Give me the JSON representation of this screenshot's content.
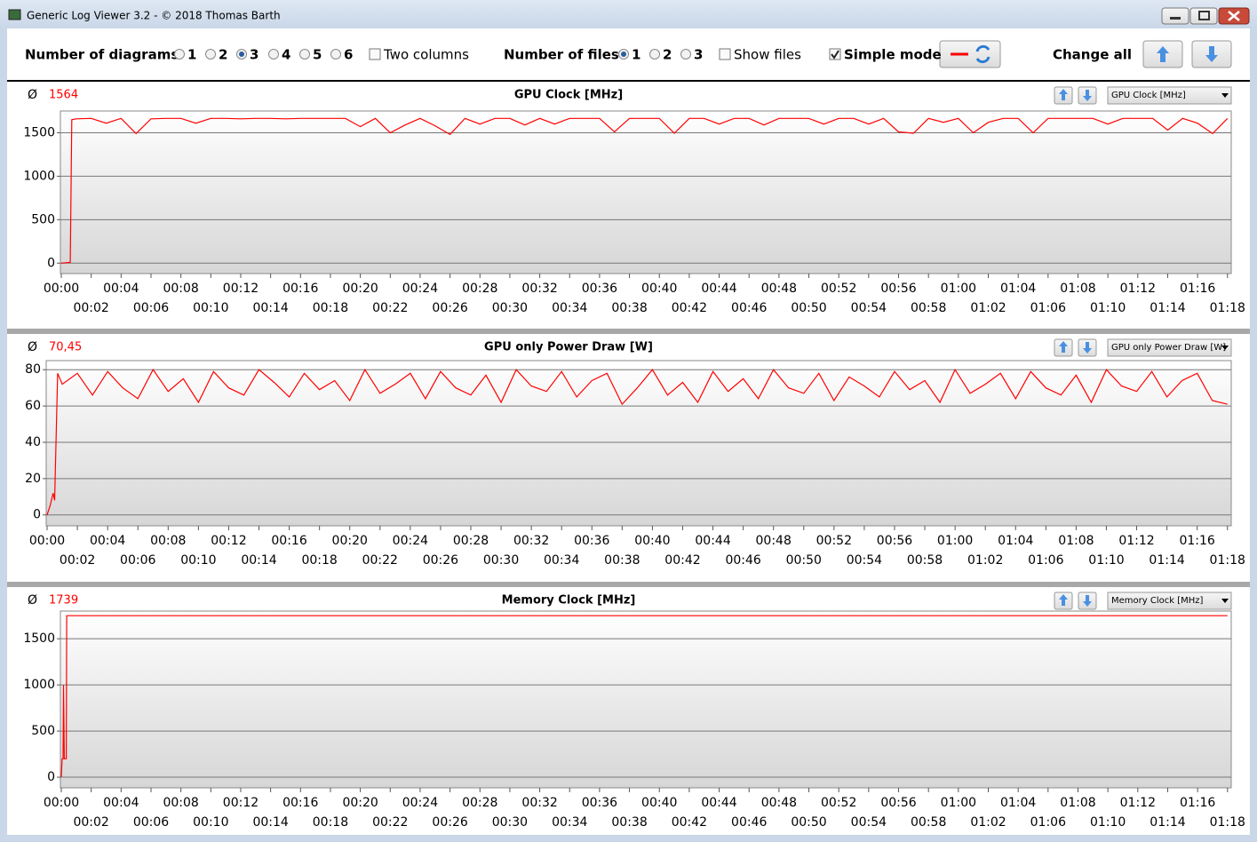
{
  "window": {
    "title": "Generic Log Viewer 3.2 - © 2018 Thomas Barth"
  },
  "toolbar": {
    "diagrams_label": "Number of diagrams",
    "diagrams_options": [
      {
        "label": "1",
        "checked": false
      },
      {
        "label": "2",
        "checked": false
      },
      {
        "label": "3",
        "checked": true
      },
      {
        "label": "4",
        "checked": false
      },
      {
        "label": "5",
        "checked": false
      },
      {
        "label": "6",
        "checked": false
      }
    ],
    "two_columns": {
      "label": "Two columns",
      "checked": false
    },
    "files_label": "Number of files",
    "files_options": [
      {
        "label": "1",
        "checked": true
      },
      {
        "label": "2",
        "checked": false
      },
      {
        "label": "3",
        "checked": false
      }
    ],
    "show_files": {
      "label": "Show files",
      "checked": false
    },
    "simple_mode": {
      "label": "Simple mode",
      "checked": true
    },
    "change_all": "Change all"
  },
  "chart_data": [
    {
      "type": "line",
      "title": "GPU Clock [MHz]",
      "avg_symbol": "Ø",
      "average": "1564",
      "color": "#ff0000",
      "x": [
        0,
        0.6,
        0.7,
        1,
        2,
        3,
        4,
        5,
        6,
        7,
        8,
        9,
        10,
        11,
        12,
        13,
        14,
        15,
        16,
        17,
        18,
        19,
        20,
        21,
        22,
        23,
        24,
        25,
        26,
        27,
        28,
        29,
        30,
        31,
        32,
        33,
        34,
        35,
        36,
        37,
        38,
        39,
        40,
        41,
        42,
        43,
        44,
        45,
        46,
        47,
        48,
        49,
        50,
        51,
        52,
        53,
        54,
        55,
        56,
        57,
        58,
        59,
        60,
        61,
        62,
        63,
        64,
        65,
        66,
        67,
        68,
        69,
        70,
        71,
        72,
        73,
        74,
        75,
        76,
        77,
        78
      ],
      "values": [
        0,
        10,
        1650,
        1660,
        1665,
        1610,
        1665,
        1490,
        1660,
        1665,
        1665,
        1610,
        1665,
        1665,
        1660,
        1665,
        1665,
        1660,
        1665,
        1665,
        1665,
        1665,
        1570,
        1665,
        1500,
        1590,
        1665,
        1580,
        1480,
        1665,
        1600,
        1665,
        1665,
        1590,
        1665,
        1600,
        1665,
        1665,
        1665,
        1510,
        1665,
        1665,
        1665,
        1495,
        1665,
        1665,
        1600,
        1665,
        1665,
        1590,
        1665,
        1665,
        1665,
        1600,
        1665,
        1665,
        1600,
        1665,
        1510,
        1495,
        1665,
        1620,
        1665,
        1500,
        1620,
        1665,
        1665,
        1500,
        1665,
        1665,
        1665,
        1665,
        1600,
        1665,
        1665,
        1665,
        1530,
        1665,
        1610,
        1490,
        1665
      ],
      "ylim": [
        -120,
        1750
      ],
      "yticks": [
        0,
        500,
        1000,
        1500
      ],
      "xlim": [
        -0.06,
        78.25
      ],
      "xticks": [
        {
          "value": 0,
          "label": "00:00"
        },
        {
          "value": 2,
          "label": "00:02"
        },
        {
          "value": 4,
          "label": "00:04"
        },
        {
          "value": 6,
          "label": "00:06"
        },
        {
          "value": 8,
          "label": "00:08"
        },
        {
          "value": 10,
          "label": "00:10"
        },
        {
          "value": 12,
          "label": "00:12"
        },
        {
          "value": 14,
          "label": "00:14"
        },
        {
          "value": 16,
          "label": "00:16"
        },
        {
          "value": 18,
          "label": "00:18"
        },
        {
          "value": 20,
          "label": "00:20"
        },
        {
          "value": 22,
          "label": "00:22"
        },
        {
          "value": 24,
          "label": "00:24"
        },
        {
          "value": 26,
          "label": "00:26"
        },
        {
          "value": 28,
          "label": "00:28"
        },
        {
          "value": 30,
          "label": "00:30"
        },
        {
          "value": 32,
          "label": "00:32"
        },
        {
          "value": 34,
          "label": "00:34"
        },
        {
          "value": 36,
          "label": "00:36"
        },
        {
          "value": 38,
          "label": "00:38"
        },
        {
          "value": 40,
          "label": "00:40"
        },
        {
          "value": 42,
          "label": "00:42"
        },
        {
          "value": 44,
          "label": "00:44"
        },
        {
          "value": 46,
          "label": "00:46"
        },
        {
          "value": 48,
          "label": "00:48"
        },
        {
          "value": 50,
          "label": "00:50"
        },
        {
          "value": 52,
          "label": "00:52"
        },
        {
          "value": 54,
          "label": "00:54"
        },
        {
          "value": 56,
          "label": "00:56"
        },
        {
          "value": 58,
          "label": "00:58"
        },
        {
          "value": 60,
          "label": "01:00"
        },
        {
          "value": 62,
          "label": "01:02"
        },
        {
          "value": 64,
          "label": "01:04"
        },
        {
          "value": 66,
          "label": "01:06"
        },
        {
          "value": 68,
          "label": "01:08"
        },
        {
          "value": 70,
          "label": "01:10"
        },
        {
          "value": 72,
          "label": "01:12"
        },
        {
          "value": 74,
          "label": "01:14"
        },
        {
          "value": 76,
          "label": "01:16"
        },
        {
          "value": 78,
          "label": "01:18"
        }
      ],
      "grid": true
    },
    {
      "type": "line",
      "title": "GPU only Power Draw [W]",
      "avg_symbol": "Ø",
      "average": "70,45",
      "color": "#ff0000",
      "x": [
        0,
        0.2,
        0.4,
        0.5,
        0.7,
        1,
        2,
        3,
        4,
        5,
        6,
        7,
        8,
        9,
        10,
        11,
        12,
        13,
        14,
        15,
        16,
        17,
        18,
        19,
        20,
        21,
        22,
        23,
        24,
        25,
        26,
        27,
        28,
        29,
        30,
        31,
        32,
        33,
        34,
        35,
        36,
        37,
        38,
        39,
        40,
        41,
        42,
        43,
        44,
        45,
        46,
        47,
        48,
        49,
        50,
        51,
        52,
        53,
        54,
        55,
        56,
        57,
        58,
        59,
        60,
        61,
        62,
        63,
        64,
        65,
        66,
        67,
        68,
        69,
        70,
        71,
        72,
        73,
        74,
        75,
        76,
        77,
        78
      ],
      "values": [
        0,
        5,
        12,
        8,
        78,
        72,
        78,
        66,
        79,
        70,
        64,
        80,
        68,
        75,
        62,
        79,
        70,
        66,
        80,
        73,
        65,
        78,
        69,
        74,
        63,
        80,
        67,
        72,
        78,
        64,
        79,
        70,
        66,
        77,
        62,
        80,
        71,
        68,
        79,
        65,
        74,
        78,
        61,
        70,
        80,
        66,
        73,
        62,
        79,
        68,
        75,
        64,
        80,
        70,
        67,
        78,
        63,
        76,
        71,
        65,
        79,
        69,
        74,
        62,
        80,
        67,
        72,
        78,
        64,
        79,
        70,
        66,
        77,
        62,
        80,
        71,
        68,
        79,
        65,
        74,
        78,
        63,
        61
      ],
      "ylim": [
        -6,
        85
      ],
      "yticks": [
        0,
        20,
        40,
        60,
        80
      ],
      "xlim": [
        -0.06,
        78.25
      ],
      "xticks": [
        {
          "value": 0,
          "label": "00:00"
        },
        {
          "value": 2,
          "label": "00:02"
        },
        {
          "value": 4,
          "label": "00:04"
        },
        {
          "value": 6,
          "label": "00:06"
        },
        {
          "value": 8,
          "label": "00:08"
        },
        {
          "value": 10,
          "label": "00:10"
        },
        {
          "value": 12,
          "label": "00:12"
        },
        {
          "value": 14,
          "label": "00:14"
        },
        {
          "value": 16,
          "label": "00:16"
        },
        {
          "value": 18,
          "label": "00:18"
        },
        {
          "value": 20,
          "label": "00:20"
        },
        {
          "value": 22,
          "label": "00:22"
        },
        {
          "value": 24,
          "label": "00:24"
        },
        {
          "value": 26,
          "label": "00:26"
        },
        {
          "value": 28,
          "label": "00:28"
        },
        {
          "value": 30,
          "label": "00:30"
        },
        {
          "value": 32,
          "label": "00:32"
        },
        {
          "value": 34,
          "label": "00:34"
        },
        {
          "value": 36,
          "label": "00:36"
        },
        {
          "value": 38,
          "label": "00:38"
        },
        {
          "value": 40,
          "label": "00:40"
        },
        {
          "value": 42,
          "label": "00:42"
        },
        {
          "value": 44,
          "label": "00:44"
        },
        {
          "value": 46,
          "label": "00:46"
        },
        {
          "value": 48,
          "label": "00:48"
        },
        {
          "value": 50,
          "label": "00:50"
        },
        {
          "value": 52,
          "label": "00:52"
        },
        {
          "value": 54,
          "label": "00:54"
        },
        {
          "value": 56,
          "label": "00:56"
        },
        {
          "value": 58,
          "label": "00:58"
        },
        {
          "value": 60,
          "label": "01:00"
        },
        {
          "value": 62,
          "label": "01:02"
        },
        {
          "value": 64,
          "label": "01:04"
        },
        {
          "value": 66,
          "label": "01:06"
        },
        {
          "value": 68,
          "label": "01:08"
        },
        {
          "value": 70,
          "label": "01:10"
        },
        {
          "value": 72,
          "label": "01:12"
        },
        {
          "value": 74,
          "label": "01:14"
        },
        {
          "value": 76,
          "label": "01:16"
        },
        {
          "value": 78,
          "label": "01:18"
        }
      ],
      "grid": true
    },
    {
      "type": "line",
      "title": "Memory Clock [MHz]",
      "avg_symbol": "Ø",
      "average": "1739",
      "color": "#ff0000",
      "x": [
        0,
        0.05,
        0.12,
        0.15,
        0.2,
        0.33,
        0.36,
        78
      ],
      "values": [
        0,
        200,
        200,
        1000,
        200,
        200,
        1750,
        1750
      ],
      "ylim": [
        -115,
        1800
      ],
      "yticks": [
        0,
        500,
        1000,
        1500
      ],
      "xlim": [
        -0.06,
        78.25
      ],
      "xticks": [
        {
          "value": 0,
          "label": "00:00"
        },
        {
          "value": 2,
          "label": "00:02"
        },
        {
          "value": 4,
          "label": "00:04"
        },
        {
          "value": 6,
          "label": "00:06"
        },
        {
          "value": 8,
          "label": "00:08"
        },
        {
          "value": 10,
          "label": "00:10"
        },
        {
          "value": 12,
          "label": "00:12"
        },
        {
          "value": 14,
          "label": "00:14"
        },
        {
          "value": 16,
          "label": "00:16"
        },
        {
          "value": 18,
          "label": "00:18"
        },
        {
          "value": 20,
          "label": "00:20"
        },
        {
          "value": 22,
          "label": "00:22"
        },
        {
          "value": 24,
          "label": "00:24"
        },
        {
          "value": 26,
          "label": "00:26"
        },
        {
          "value": 28,
          "label": "00:28"
        },
        {
          "value": 30,
          "label": "00:30"
        },
        {
          "value": 32,
          "label": "00:32"
        },
        {
          "value": 34,
          "label": "00:34"
        },
        {
          "value": 36,
          "label": "00:36"
        },
        {
          "value": 38,
          "label": "00:38"
        },
        {
          "value": 40,
          "label": "00:40"
        },
        {
          "value": 42,
          "label": "00:42"
        },
        {
          "value": 44,
          "label": "00:44"
        },
        {
          "value": 46,
          "label": "00:46"
        },
        {
          "value": 48,
          "label": "00:48"
        },
        {
          "value": 50,
          "label": "00:50"
        },
        {
          "value": 52,
          "label": "00:52"
        },
        {
          "value": 54,
          "label": "00:54"
        },
        {
          "value": 56,
          "label": "00:56"
        },
        {
          "value": 58,
          "label": "00:58"
        },
        {
          "value": 60,
          "label": "01:00"
        },
        {
          "value": 62,
          "label": "01:02"
        },
        {
          "value": 64,
          "label": "01:04"
        },
        {
          "value": 66,
          "label": "01:06"
        },
        {
          "value": 68,
          "label": "01:08"
        },
        {
          "value": 70,
          "label": "01:10"
        },
        {
          "value": 72,
          "label": "01:12"
        },
        {
          "value": 74,
          "label": "01:14"
        },
        {
          "value": 76,
          "label": "01:16"
        },
        {
          "value": 78,
          "label": "01:18"
        }
      ],
      "grid": true
    }
  ]
}
